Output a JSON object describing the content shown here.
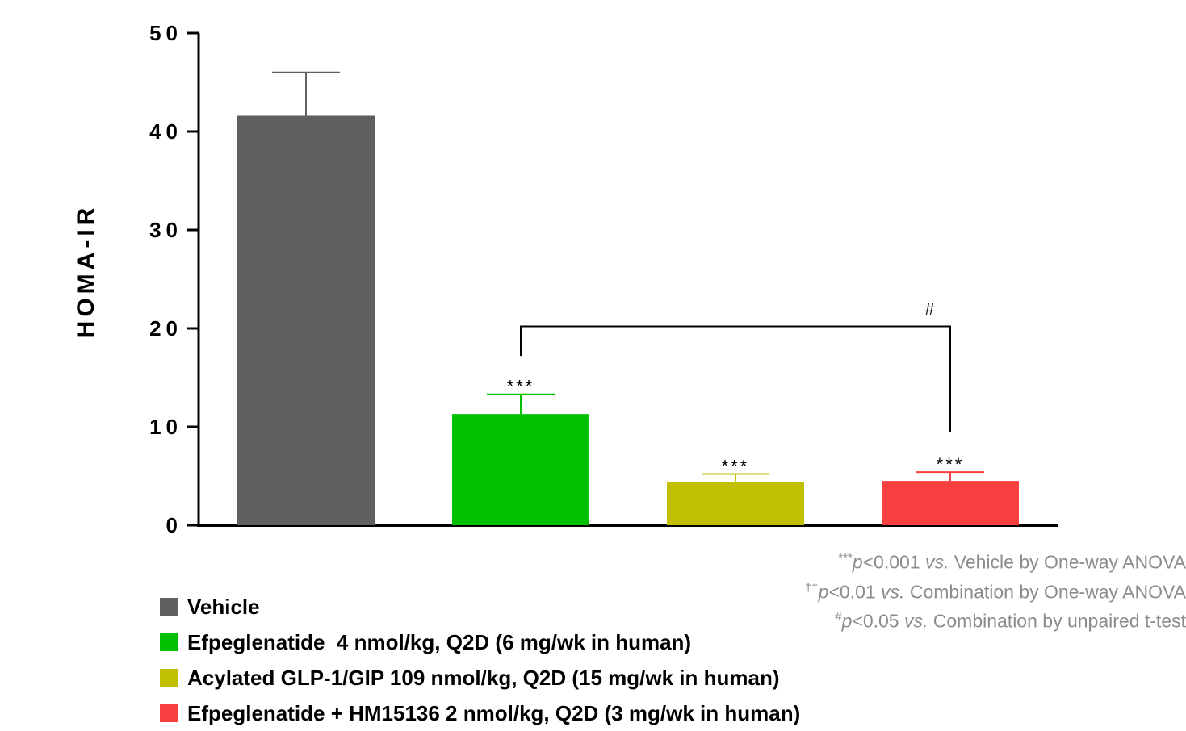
{
  "chart_data": {
    "type": "bar",
    "ylabel": "HOMA-IR",
    "xlabel": "",
    "ylim": [
      0,
      50
    ],
    "yticks": [
      0,
      10,
      20,
      30,
      40,
      50
    ],
    "ytick_labels": [
      "0",
      "10",
      "20",
      "30",
      "40",
      "50"
    ],
    "categories": [
      "Vehicle",
      "Efpeglenatide  4 nmol/kg, Q2D (6 mg/wk in human)",
      "Acylated GLP-1/GIP 109 nmol/kg, Q2D (15 mg/wk in human)",
      "Efpeglenatide + HM15136 2 nmol/kg, Q2D (3 mg/wk in human)"
    ],
    "values": [
      41.6,
      11.3,
      4.4,
      4.5
    ],
    "errors": [
      4.4,
      2.0,
      0.8,
      0.9
    ],
    "colors": [
      "#606060",
      "#00c000",
      "#c0c000",
      "#f84040"
    ],
    "bar_labels": [
      "",
      "***",
      "***",
      "***"
    ],
    "comparison": {
      "from": 1,
      "to": 3,
      "label": "#"
    },
    "legend": {
      "placement": "bottom-left",
      "entries": [
        "Vehicle",
        "Efpeglenatide  4 nmol/kg, Q2D (6 mg/wk in human)",
        "Acylated GLP-1/GIP 109 nmol/kg, Q2D (15 mg/wk in human)",
        "Efpeglenatide + HM15136 2 nmol/kg, Q2D (3 mg/wk in human)"
      ]
    },
    "grid": false
  },
  "notes": [
    {
      "mark": "***",
      "p": "p",
      "threshold": "<0.001 ",
      "vs": "vs.",
      "rest": " Vehicle by One-way ANOVA"
    },
    {
      "mark": "††",
      "p": "p",
      "threshold": "<0.01 ",
      "vs": "vs.",
      "rest": " Combination by One-way ANOVA"
    },
    {
      "mark": "#",
      "p": "p",
      "threshold": "<0.05 ",
      "vs": "vs.",
      "rest": " Combination by unpaired t-test"
    }
  ]
}
